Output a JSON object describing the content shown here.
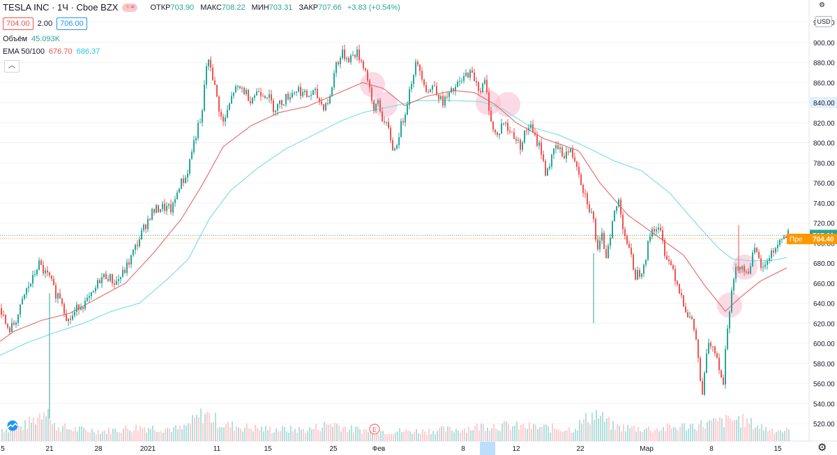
{
  "header": {
    "title": "TESLA INC · 1Ч · Cboe BZX",
    "ohlc": {
      "open_label": "ОТКР",
      "open": "703.90",
      "high_label": "МАКС",
      "high": "708.22",
      "low_label": "МИН",
      "low": "703.31",
      "close_label": "ЗАКР",
      "close": "707.66",
      "change": "+3.83 (+0.54%)"
    },
    "bid": "704.00",
    "spread": "2.00",
    "ask": "706.00"
  },
  "indicators": {
    "volume_label": "Объём",
    "volume_value": "45.093K",
    "ema_label": "EMA 50/100",
    "ema50_value": "676.70",
    "ema100_value": "686.37",
    "collapse_icon": "chevron-up-icon"
  },
  "price_axis": {
    "currency": "USD",
    "ticks": [
      "920.00",
      "900.00",
      "880.00",
      "860.00",
      "840.00",
      "820.00",
      "800.00",
      "780.00",
      "760.00",
      "740.00",
      "720.00",
      "700.00",
      "680.00",
      "660.00",
      "640.00",
      "620.00",
      "600.00",
      "580.00",
      "560.00",
      "540.00",
      "520.00"
    ],
    "last_price_label": "707.66",
    "premarket_label": "Пре",
    "premarket_price": "704.40",
    "highlight_tick": "840.00"
  },
  "time_axis": {
    "labels": [
      "5",
      "21",
      "28",
      "2021",
      "11",
      "15",
      "25",
      "Фев",
      "8",
      "12",
      "22",
      "Мар",
      "8",
      "15"
    ]
  },
  "events": {
    "earnings_marker": "E"
  },
  "colors": {
    "up": "#26a69a",
    "down": "#ef5350",
    "ema50": "#e57373",
    "ema100": "#80deea",
    "premarket": "#ff9800",
    "highlight_circle": "#f8bbd0"
  },
  "chart_data": {
    "type": "candlestick",
    "title": "TESLA INC · 1Ч · Cboe BZX",
    "ylim": [
      510,
      930
    ],
    "y_ticks": [
      920,
      900,
      880,
      860,
      840,
      820,
      800,
      780,
      760,
      740,
      720,
      700,
      680,
      660,
      640,
      620,
      600,
      580,
      560,
      540,
      520
    ],
    "x_labels": [
      "5",
      "21",
      "28",
      "2021",
      "11",
      "15",
      "25",
      "Фев",
      "8",
      "12",
      "22",
      "Мар",
      "8",
      "15"
    ],
    "price_anchors": [
      [
        0,
        635
      ],
      [
        4,
        626
      ],
      [
        10,
        612
      ],
      [
        18,
        618
      ],
      [
        26,
        630
      ],
      [
        36,
        652
      ],
      [
        46,
        664
      ],
      [
        54,
        680
      ],
      [
        62,
        671
      ],
      [
        70,
        665
      ],
      [
        78,
        650
      ],
      [
        86,
        647
      ],
      [
        96,
        622
      ],
      [
        104,
        628
      ],
      [
        112,
        638
      ],
      [
        122,
        640
      ],
      [
        132,
        648
      ],
      [
        142,
        664
      ],
      [
        152,
        668
      ],
      [
        164,
        660
      ],
      [
        176,
        670
      ],
      [
        186,
        684
      ],
      [
        196,
        700
      ],
      [
        206,
        716
      ],
      [
        216,
        730
      ],
      [
        230,
        736
      ],
      [
        246,
        733
      ],
      [
        256,
        758
      ],
      [
        266,
        766
      ],
      [
        274,
        792
      ],
      [
        282,
        814
      ],
      [
        288,
        820
      ],
      [
        294,
        876
      ],
      [
        300,
        880
      ],
      [
        306,
        858
      ],
      [
        312,
        838
      ],
      [
        318,
        818
      ],
      [
        324,
        828
      ],
      [
        334,
        852
      ],
      [
        346,
        854
      ],
      [
        358,
        844
      ],
      [
        370,
        852
      ],
      [
        382,
        848
      ],
      [
        392,
        834
      ],
      [
        402,
        840
      ],
      [
        414,
        848
      ],
      [
        426,
        854
      ],
      [
        438,
        846
      ],
      [
        450,
        850
      ],
      [
        462,
        836
      ],
      [
        472,
        844
      ],
      [
        480,
        878
      ],
      [
        490,
        888
      ],
      [
        500,
        884
      ],
      [
        510,
        890
      ],
      [
        520,
        878
      ],
      [
        528,
        860
      ],
      [
        534,
        826
      ],
      [
        540,
        845
      ],
      [
        548,
        822
      ],
      [
        556,
        812
      ],
      [
        564,
        790
      ],
      [
        572,
        812
      ],
      [
        578,
        826
      ],
      [
        586,
        852
      ],
      [
        594,
        878
      ],
      [
        602,
        872
      ],
      [
        612,
        850
      ],
      [
        622,
        858
      ],
      [
        632,
        840
      ],
      [
        642,
        846
      ],
      [
        652,
        855
      ],
      [
        662,
        862
      ],
      [
        670,
        870
      ],
      [
        678,
        866
      ],
      [
        688,
        852
      ],
      [
        694,
        860
      ],
      [
        700,
        836
      ],
      [
        706,
        812
      ],
      [
        712,
        806
      ],
      [
        720,
        822
      ],
      [
        728,
        812
      ],
      [
        736,
        808
      ],
      [
        744,
        796
      ],
      [
        752,
        810
      ],
      [
        758,
        818
      ],
      [
        766,
        804
      ],
      [
        774,
        796
      ],
      [
        780,
        770
      ],
      [
        788,
        780
      ],
      [
        796,
        796
      ],
      [
        806,
        788
      ],
      [
        816,
        792
      ],
      [
        826,
        780
      ],
      [
        834,
        756
      ],
      [
        842,
        740
      ],
      [
        850,
        722
      ],
      [
        856,
        690
      ],
      [
        862,
        706
      ],
      [
        868,
        688
      ],
      [
        874,
        710
      ],
      [
        880,
        730
      ],
      [
        886,
        742
      ],
      [
        892,
        718
      ],
      [
        898,
        700
      ],
      [
        904,
        684
      ],
      [
        910,
        668
      ],
      [
        918,
        672
      ],
      [
        926,
        690
      ],
      [
        932,
        712
      ],
      [
        938,
        716
      ],
      [
        946,
        710
      ],
      [
        952,
        692
      ],
      [
        958,
        682
      ],
      [
        964,
        674
      ],
      [
        970,
        660
      ],
      [
        976,
        648
      ],
      [
        984,
        630
      ],
      [
        990,
        622
      ],
      [
        996,
        610
      ],
      [
        1002,
        570
      ],
      [
        1006,
        545
      ],
      [
        1012,
        592
      ],
      [
        1018,
        600
      ],
      [
        1024,
        595
      ],
      [
        1030,
        578
      ],
      [
        1036,
        558
      ],
      [
        1040,
        608
      ],
      [
        1046,
        642
      ],
      [
        1052,
        668
      ],
      [
        1058,
        680
      ],
      [
        1064,
        676
      ],
      [
        1070,
        668
      ],
      [
        1076,
        684
      ],
      [
        1082,
        692
      ],
      [
        1088,
        680
      ],
      [
        1094,
        672
      ],
      [
        1100,
        686
      ],
      [
        1108,
        692
      ],
      [
        1116,
        702
      ],
      [
        1122,
        704
      ],
      [
        1128,
        708
      ]
    ],
    "ema50_anchors": [
      [
        0,
        602
      ],
      [
        20,
        612
      ],
      [
        60,
        623
      ],
      [
        100,
        630
      ],
      [
        140,
        645
      ],
      [
        180,
        660
      ],
      [
        220,
        690
      ],
      [
        260,
        724
      ],
      [
        290,
        758
      ],
      [
        320,
        796
      ],
      [
        360,
        817
      ],
      [
        400,
        830
      ],
      [
        440,
        836
      ],
      [
        480,
        848
      ],
      [
        520,
        860
      ],
      [
        550,
        854
      ],
      [
        580,
        837
      ],
      [
        610,
        846
      ],
      [
        650,
        852
      ],
      [
        680,
        850
      ],
      [
        710,
        838
      ],
      [
        740,
        820
      ],
      [
        780,
        804
      ],
      [
        830,
        792
      ],
      [
        860,
        760
      ],
      [
        900,
        728
      ],
      [
        940,
        708
      ],
      [
        980,
        688
      ],
      [
        1010,
        658
      ],
      [
        1040,
        632
      ],
      [
        1060,
        645
      ],
      [
        1090,
        662
      ],
      [
        1130,
        676
      ]
    ],
    "ema100_anchors": [
      [
        0,
        588
      ],
      [
        40,
        601
      ],
      [
        80,
        611
      ],
      [
        120,
        620
      ],
      [
        160,
        632
      ],
      [
        200,
        640
      ],
      [
        240,
        664
      ],
      [
        270,
        684
      ],
      [
        300,
        724
      ],
      [
        330,
        752
      ],
      [
        370,
        775
      ],
      [
        410,
        794
      ],
      [
        450,
        808
      ],
      [
        490,
        822
      ],
      [
        520,
        830
      ],
      [
        560,
        836
      ],
      [
        600,
        842
      ],
      [
        650,
        842
      ],
      [
        690,
        841
      ],
      [
        720,
        834
      ],
      [
        760,
        816
      ],
      [
        800,
        808
      ],
      [
        840,
        796
      ],
      [
        880,
        782
      ],
      [
        920,
        772
      ],
      [
        960,
        750
      ],
      [
        1000,
        718
      ],
      [
        1030,
        695
      ],
      [
        1050,
        684
      ],
      [
        1080,
        682
      ],
      [
        1110,
        683
      ],
      [
        1130,
        686
      ]
    ],
    "volume_anchors": [
      [
        0,
        0.3
      ],
      [
        30,
        0.35
      ],
      [
        50,
        0.55
      ],
      [
        60,
        0.75
      ],
      [
        68,
        1.0
      ],
      [
        72,
        0.4
      ],
      [
        100,
        0.3
      ],
      [
        150,
        0.25
      ],
      [
        200,
        0.35
      ],
      [
        260,
        0.3
      ],
      [
        292,
        0.7
      ],
      [
        320,
        0.4
      ],
      [
        380,
        0.3
      ],
      [
        440,
        0.28
      ],
      [
        476,
        0.45
      ],
      [
        500,
        0.3
      ],
      [
        540,
        0.25
      ],
      [
        600,
        0.25
      ],
      [
        660,
        0.3
      ],
      [
        700,
        0.4
      ],
      [
        760,
        0.35
      ],
      [
        820,
        0.3
      ],
      [
        852,
        0.7
      ],
      [
        880,
        0.35
      ],
      [
        940,
        0.3
      ],
      [
        1000,
        0.4
      ],
      [
        1056,
        0.55
      ],
      [
        1100,
        0.3
      ],
      [
        1130,
        0.25
      ]
    ],
    "highlighted_zones": [
      [
        534,
        858
      ],
      [
        552,
        838
      ],
      [
        700,
        840
      ],
      [
        728,
        838
      ],
      [
        1046,
        638
      ],
      [
        1068,
        676
      ]
    ],
    "earnings_x": 537,
    "last_price": 707.66,
    "premarket_price": 704.4
  }
}
